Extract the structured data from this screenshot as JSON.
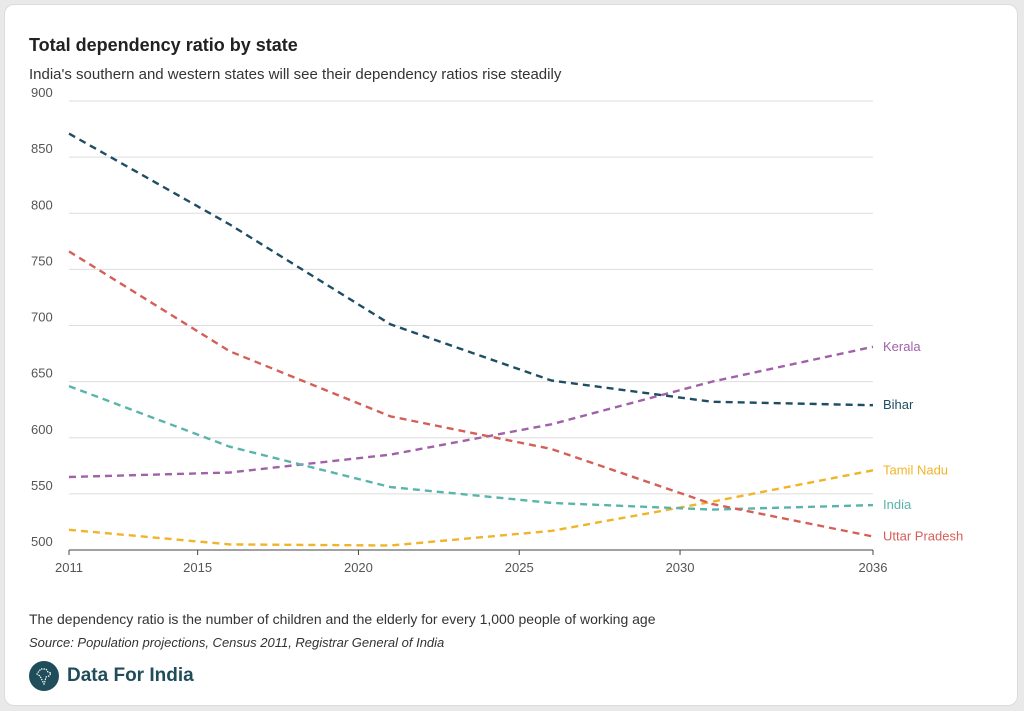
{
  "header": {
    "title": "Total dependency ratio by state",
    "subtitle": "India's southern and western states will see their dependency ratios rise steadily"
  },
  "footer": {
    "note": "The dependency ratio is the number of children and the elderly for every 1,000 people of working age",
    "source": "Source: Population projections, Census 2011, Registrar General of India",
    "brand": "Data For India",
    "brand_color": "#1f4e5a"
  },
  "chart_data": {
    "type": "line",
    "title": "Total dependency ratio by state",
    "xlabel": "",
    "ylabel": "",
    "xlim": [
      2011,
      2036
    ],
    "ylim": [
      500,
      900
    ],
    "x_ticks": [
      2011,
      2015,
      2020,
      2025,
      2030,
      2036
    ],
    "y_ticks": [
      500,
      550,
      600,
      650,
      700,
      750,
      800,
      850,
      900
    ],
    "x": [
      2011,
      2016,
      2021,
      2026,
      2031,
      2036
    ],
    "grid": true,
    "line_style": "dashed",
    "series": [
      {
        "name": "Kerala",
        "color": "#a061a8",
        "values": [
          565,
          569,
          585,
          612,
          650,
          681
        ]
      },
      {
        "name": "Bihar",
        "color": "#1f4e64",
        "values": [
          871,
          790,
          701,
          651,
          632,
          629
        ]
      },
      {
        "name": "Tamil Nadu",
        "color": "#f0b429",
        "values": [
          518,
          505,
          504,
          517,
          543,
          571
        ]
      },
      {
        "name": "India",
        "color": "#5ab4ac",
        "values": [
          646,
          592,
          556,
          542,
          536,
          540
        ]
      },
      {
        "name": "Uttar Pradesh",
        "color": "#d45f57",
        "values": [
          766,
          677,
          619,
          590,
          541,
          512
        ]
      }
    ]
  }
}
